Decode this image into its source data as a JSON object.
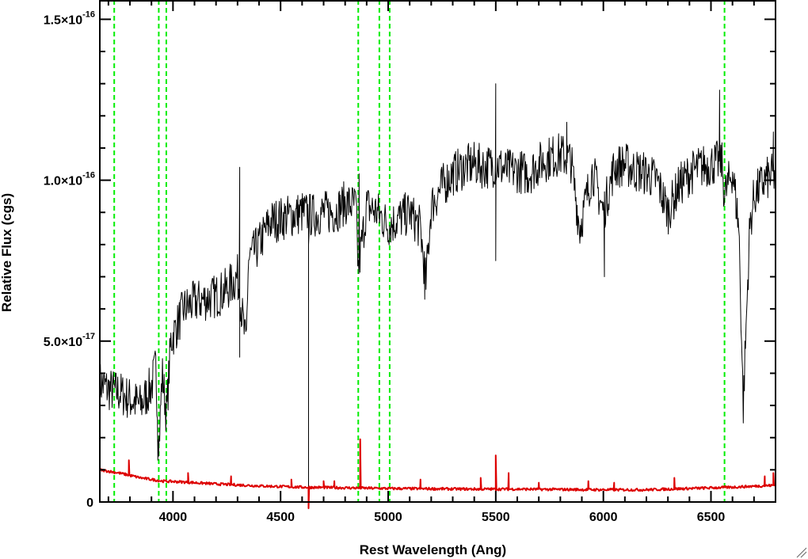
{
  "chart_data": {
    "type": "line",
    "xlabel": "Rest Wavelength (Ang)",
    "ylabel": "Relative Flux (cgs)",
    "xlim": [
      3660,
      6800
    ],
    "ylim": [
      0,
      1.56e-16
    ],
    "x_ticks": [
      {
        "value": 4000,
        "label": "4000"
      },
      {
        "value": 4500,
        "label": "4500"
      },
      {
        "value": 5000,
        "label": "5000"
      },
      {
        "value": 5500,
        "label": "5500"
      },
      {
        "value": 6000,
        "label": "6000"
      },
      {
        "value": 6500,
        "label": "6500"
      }
    ],
    "x_minor_step": 100,
    "y_ticks": [
      {
        "value": 0,
        "mantissa": "0",
        "exponent": ""
      },
      {
        "value": 5e-17,
        "mantissa": "5.0×10",
        "exponent": "-17"
      },
      {
        "value": 1e-16,
        "mantissa": "1.0×10",
        "exponent": "-16"
      },
      {
        "value": 1.5e-16,
        "mantissa": "1.5×10",
        "exponent": "-16"
      }
    ],
    "y_minor_step": 1e-17,
    "vlines": {
      "color": "#00ee00",
      "style": "dashed",
      "x": [
        3727,
        3934,
        3969,
        4861,
        4959,
        5007,
        6563
      ]
    },
    "series": [
      {
        "color": "#000000",
        "style": "noisy-line",
        "x": [
          3660,
          3700,
          3750,
          3800,
          3850,
          3900,
          3920,
          3935,
          3950,
          3970,
          3990,
          4050,
          4100,
          4150,
          4200,
          4250,
          4300,
          4340,
          4350,
          4400,
          4450,
          4500,
          4550,
          4600,
          4650,
          4700,
          4750,
          4800,
          4850,
          4861,
          4900,
          4950,
          5000,
          5050,
          5100,
          5150,
          5175,
          5200,
          5250,
          5300,
          5350,
          5400,
          5450,
          5500,
          5550,
          5600,
          5650,
          5700,
          5750,
          5800,
          5850,
          5890,
          5950,
          6000,
          6050,
          6100,
          6150,
          6200,
          6250,
          6300,
          6350,
          6400,
          6450,
          6500,
          6550,
          6563,
          6600,
          6630,
          6650,
          6680,
          6700,
          6750,
          6800
        ],
        "y": [
          3.7e-17,
          3.5e-17,
          3.4e-17,
          3.2e-17,
          3e-17,
          3.6e-17,
          4.2e-17,
          1.8e-17,
          4e-17,
          2.7e-17,
          5e-17,
          6e-17,
          6.2e-17,
          6.3e-17,
          6.4e-17,
          6.6e-17,
          7e-17,
          4.8e-17,
          7.5e-17,
          8e-17,
          8.7e-17,
          8.8e-17,
          8.9e-17,
          9e-17,
          8.9e-17,
          9e-17,
          9e-17,
          9.3e-17,
          9.2e-17,
          7.2e-17,
          9.2e-17,
          9e-17,
          8.6e-17,
          8.8e-17,
          9e-17,
          8.5e-17,
          6.8e-17,
          9.2e-17,
          9.8e-17,
          1.02e-16,
          1.04e-16,
          1.05e-16,
          1.04e-16,
          1.05e-16,
          1.03e-16,
          1.03e-16,
          1.02e-16,
          1.05e-16,
          1.07e-16,
          1.08e-16,
          1.06e-16,
          8.5e-17,
          1.03e-16,
          9e-17,
          1.04e-16,
          1.05e-16,
          1.03e-16,
          1.02e-16,
          1e-16,
          9e-17,
          9.8e-17,
          1.02e-16,
          1.04e-16,
          1.05e-16,
          1.06e-16,
          9.5e-17,
          1.03e-16,
          8.5e-17,
          3e-17,
          8.5e-17,
          9.5e-17,
          1e-16,
          1.02e-16
        ],
        "spikes": [
          {
            "x": 4310,
            "y": 1.04e-16
          },
          {
            "x": 4310,
            "y": 4.5e-17
          },
          {
            "x": 4630,
            "y": 0
          },
          {
            "x": 4630,
            "y": 8e-17
          },
          {
            "x": 4865,
            "y": 1.02e-16
          },
          {
            "x": 5170,
            "y": 6.3e-17
          },
          {
            "x": 5500,
            "y": 1.3e-16
          },
          {
            "x": 5500,
            "y": 7.5e-17
          },
          {
            "x": 5830,
            "y": 1.18e-16
          },
          {
            "x": 6005,
            "y": 7e-17
          },
          {
            "x": 6540,
            "y": 1.28e-16
          },
          {
            "x": 6790,
            "y": 1.15e-16
          },
          {
            "x": 3930,
            "y": 1.3e-17
          }
        ]
      },
      {
        "color": "#dd0000",
        "style": "error-line",
        "x": [
          3660,
          3750,
          3850,
          3950,
          4050,
          4200,
          4400,
          4600,
          4800,
          5000,
          5200,
          5400,
          5600,
          5800,
          6000,
          6200,
          6400,
          6600,
          6800
        ],
        "y": [
          1e-17,
          9e-18,
          7.5e-18,
          6.5e-18,
          6.2e-18,
          5.6e-18,
          5e-18,
          4.6e-18,
          4.4e-18,
          4.2e-18,
          4.1e-18,
          4e-18,
          4e-18,
          3.9e-18,
          3.8e-18,
          3.8e-18,
          4.2e-18,
          4.6e-18,
          5.2e-18
        ],
        "spikes": [
          {
            "x": 3795,
            "y": 1.3e-17
          },
          {
            "x": 4070,
            "y": 9e-18
          },
          {
            "x": 4270,
            "y": 8e-18
          },
          {
            "x": 4550,
            "y": 7e-18
          },
          {
            "x": 4630,
            "y": -2e-18
          },
          {
            "x": 4700,
            "y": 6.5e-18
          },
          {
            "x": 4750,
            "y": 6.5e-18
          },
          {
            "x": 4870,
            "y": 1.95e-17
          },
          {
            "x": 5150,
            "y": 7e-18
          },
          {
            "x": 5430,
            "y": 7.5e-18
          },
          {
            "x": 5500,
            "y": 1.45e-17
          },
          {
            "x": 5560,
            "y": 9e-18
          },
          {
            "x": 5700,
            "y": 6e-18
          },
          {
            "x": 5930,
            "y": 6.5e-18
          },
          {
            "x": 6050,
            "y": 6e-18
          },
          {
            "x": 6330,
            "y": 7.5e-18
          },
          {
            "x": 6750,
            "y": 8e-18
          },
          {
            "x": 6790,
            "y": 9e-18
          }
        ]
      }
    ]
  }
}
